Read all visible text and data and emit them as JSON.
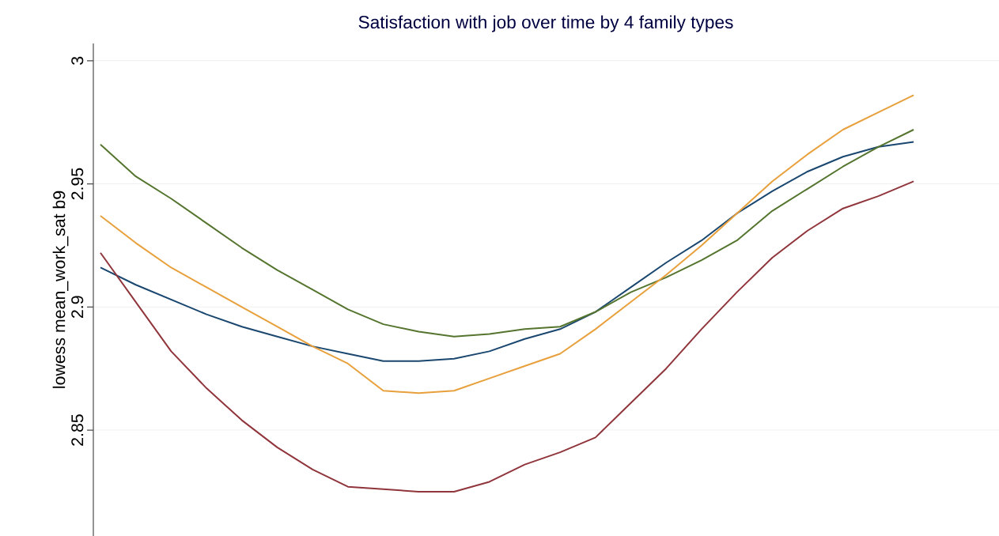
{
  "chart_data": {
    "type": "line",
    "title": "Satisfaction with job over time by 4 family types",
    "ylabel": "lowess mean_work_sat b9",
    "categories": [
      null,
      null,
      null,
      null,
      null,
      null,
      null,
      null,
      null,
      null,
      null,
      null,
      null,
      null,
      null,
      null,
      null,
      null,
      null,
      null,
      null,
      null,
      null,
      null
    ],
    "series": [
      {
        "color": "#1a476f",
        "values": [
          2.916,
          2.909,
          2.903,
          2.897,
          2.892,
          2.888,
          2.884,
          2.881,
          2.878,
          2.878,
          2.879,
          2.882,
          2.887,
          2.891,
          2.898,
          2.908,
          2.918,
          2.927,
          2.938,
          2.947,
          2.955,
          2.961,
          2.965,
          2.967
        ]
      },
      {
        "color": "#90353b",
        "values": [
          2.922,
          2.902,
          2.882,
          2.867,
          2.854,
          2.843,
          2.834,
          2.827,
          2.826,
          2.825,
          2.825,
          2.829,
          2.836,
          2.841,
          2.847,
          2.861,
          2.875,
          2.891,
          2.906,
          2.92,
          2.931,
          2.94,
          2.945,
          2.951
        ]
      },
      {
        "color": "#55752f",
        "values": [
          2.966,
          2.953,
          2.944,
          2.934,
          2.924,
          2.915,
          2.907,
          2.899,
          2.893,
          2.89,
          2.888,
          2.889,
          2.891,
          2.892,
          2.898,
          2.906,
          2.912,
          2.919,
          2.927,
          2.939,
          2.948,
          2.957,
          2.965,
          2.972
        ]
      },
      {
        "color": "#e8a03c",
        "values": [
          2.937,
          2.926,
          2.916,
          2.908,
          2.9,
          2.892,
          2.884,
          2.877,
          2.866,
          2.865,
          2.866,
          2.871,
          2.876,
          2.881,
          2.891,
          2.902,
          2.913,
          2.925,
          2.938,
          2.951,
          2.962,
          2.972,
          2.979,
          2.986
        ]
      }
    ],
    "ylim": [
      2.807,
      3.007
    ],
    "yticks": [
      2.85,
      2.9,
      2.95,
      3
    ],
    "grid": "y",
    "tick_labels": "y",
    "marker": "none",
    "line_style": "solid"
  }
}
